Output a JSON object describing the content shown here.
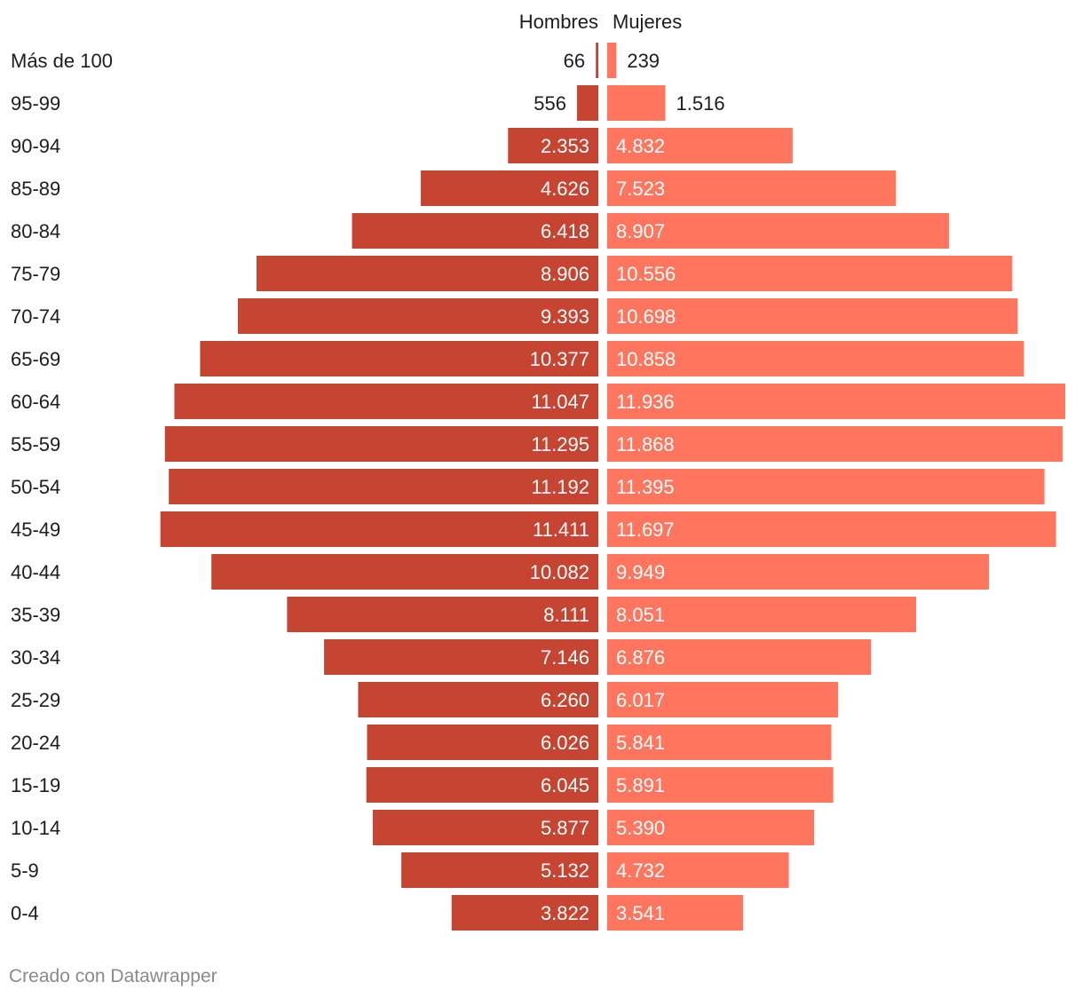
{
  "chart_data": {
    "type": "bar",
    "subtype": "population-pyramid",
    "title": "",
    "series": [
      {
        "name": "Hombres",
        "color": "#c64532",
        "values": [
          66,
          556,
          2353,
          4626,
          6418,
          8906,
          9393,
          10377,
          11047,
          11295,
          11192,
          11411,
          10082,
          8111,
          7146,
          6260,
          6026,
          6045,
          5877,
          5132,
          3822
        ],
        "labels": [
          "66",
          "556",
          "2.353",
          "4.626",
          "6.418",
          "8.906",
          "9.393",
          "10.377",
          "11.047",
          "11.295",
          "11.192",
          "11.411",
          "10.082",
          "8.111",
          "7.146",
          "6.260",
          "6.026",
          "6.045",
          "5.877",
          "5.132",
          "3.822"
        ]
      },
      {
        "name": "Mujeres",
        "color": "#ff755d",
        "values": [
          239,
          1516,
          4832,
          7523,
          8907,
          10556,
          10698,
          10858,
          11936,
          11868,
          11395,
          11697,
          9949,
          8051,
          6876,
          6017,
          5841,
          5891,
          5390,
          4732,
          3541
        ],
        "labels": [
          "239",
          "1.516",
          "4.832",
          "7.523",
          "8.907",
          "10.556",
          "10.698",
          "10.858",
          "11.936",
          "11.868",
          "11.395",
          "11.697",
          "9.949",
          "8.051",
          "6.876",
          "6.017",
          "5.841",
          "5.891",
          "5.390",
          "4.732",
          "3.541"
        ]
      }
    ],
    "categories": [
      "Más de 100",
      "95-99",
      "90-94",
      "85-89",
      "80-84",
      "75-79",
      "70-74",
      "65-69",
      "60-64",
      "55-59",
      "50-54",
      "45-49",
      "40-44",
      "35-39",
      "30-34",
      "25-29",
      "20-24",
      "15-19",
      "10-14",
      "5-9",
      "0-4"
    ],
    "xlim": [
      0,
      11936
    ],
    "grid": false,
    "legend": "top-center"
  },
  "footer": {
    "credit": "Creado con Datawrapper"
  },
  "colors": {
    "men": "#c64532",
    "women": "#ff755d",
    "text_dark": "#1d1d1d",
    "text_light": "#ffffff",
    "credit": "#8a8a8a"
  }
}
